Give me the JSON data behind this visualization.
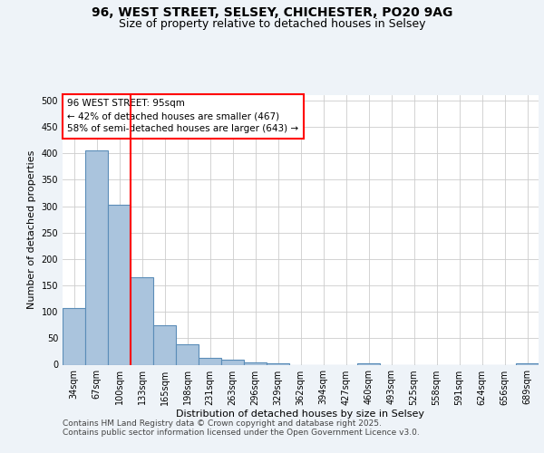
{
  "title_line1": "96, WEST STREET, SELSEY, CHICHESTER, PO20 9AG",
  "title_line2": "Size of property relative to detached houses in Selsey",
  "xlabel": "Distribution of detached houses by size in Selsey",
  "ylabel": "Number of detached properties",
  "categories": [
    "34sqm",
    "67sqm",
    "100sqm",
    "133sqm",
    "165sqm",
    "198sqm",
    "231sqm",
    "263sqm",
    "296sqm",
    "329sqm",
    "362sqm",
    "394sqm",
    "427sqm",
    "460sqm",
    "493sqm",
    "525sqm",
    "558sqm",
    "591sqm",
    "624sqm",
    "656sqm",
    "689sqm"
  ],
  "values": [
    107,
    405,
    303,
    165,
    75,
    38,
    13,
    10,
    5,
    3,
    0,
    0,
    0,
    3,
    0,
    0,
    0,
    0,
    0,
    0,
    3
  ],
  "bar_color": "#aac4dd",
  "bar_edge_color": "#5b8db8",
  "red_line_x": 2.5,
  "annotation_text": "96 WEST STREET: 95sqm\n← 42% of detached houses are smaller (467)\n58% of semi-detached houses are larger (643) →",
  "annotation_box_color": "white",
  "annotation_box_edge_color": "red",
  "ylim": [
    0,
    510
  ],
  "yticks": [
    0,
    50,
    100,
    150,
    200,
    250,
    300,
    350,
    400,
    450,
    500
  ],
  "background_color": "#eef3f8",
  "plot_bg_color": "white",
  "footer_line1": "Contains HM Land Registry data © Crown copyright and database right 2025.",
  "footer_line2": "Contains public sector information licensed under the Open Government Licence v3.0.",
  "grid_color": "#cccccc",
  "title_fontsize": 10,
  "subtitle_fontsize": 9,
  "axis_label_fontsize": 8,
  "tick_fontsize": 7,
  "annotation_fontsize": 7.5,
  "footer_fontsize": 6.5
}
